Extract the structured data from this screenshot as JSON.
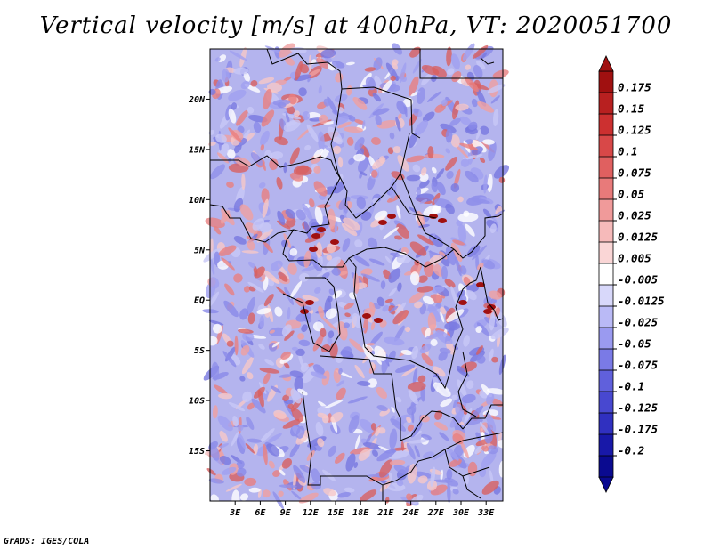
{
  "title": "Vertical velocity [m/s] at 400hPa, VT: 2020051700",
  "footer": "GrADS: IGES/COLA",
  "map": {
    "lon_range": [
      0,
      35
    ],
    "lat_range": [
      -20,
      25
    ],
    "lat_ticks": [
      {
        "lat": 20,
        "label": "20N"
      },
      {
        "lat": 15,
        "label": "15N"
      },
      {
        "lat": 10,
        "label": "10N"
      },
      {
        "lat": 5,
        "label": "5N"
      },
      {
        "lat": 0,
        "label": "EQ"
      },
      {
        "lat": -5,
        "label": "5S"
      },
      {
        "lat": -10,
        "label": "10S"
      },
      {
        "lat": -15,
        "label": "15S"
      }
    ],
    "lon_ticks": [
      {
        "lon": 3,
        "label": "3E"
      },
      {
        "lon": 6,
        "label": "6E"
      },
      {
        "lon": 9,
        "label": "9E"
      },
      {
        "lon": 12,
        "label": "12E"
      },
      {
        "lon": 15,
        "label": "15E"
      },
      {
        "lon": 18,
        "label": "18E"
      },
      {
        "lon": 21,
        "label": "21E"
      },
      {
        "lon": 24,
        "label": "24E"
      },
      {
        "lon": 27,
        "label": "27E"
      },
      {
        "lon": 30,
        "label": "30E"
      },
      {
        "lon": 33,
        "label": "33E"
      }
    ]
  },
  "colorbar": {
    "labels": [
      "0.175",
      "0.15",
      "0.125",
      "0.1",
      "0.075",
      "0.05",
      "0.025",
      "0.0125",
      "0.005",
      "-0.005",
      "-0.0125",
      "-0.025",
      "-0.05",
      "-0.075",
      "-0.1",
      "-0.125",
      "-0.175",
      "-0.2"
    ],
    "colors": [
      "#a01010",
      "#b82020",
      "#cc3030",
      "#d84848",
      "#e06060",
      "#e87a7a",
      "#f09a9a",
      "#f6baba",
      "#fad6d6",
      "#ffffff",
      "#d8d8fa",
      "#babaf6",
      "#9a9af0",
      "#7a7ae6",
      "#6060dc",
      "#4848d0",
      "#3030c0",
      "#1818a8",
      "#0a0a90"
    ]
  }
}
